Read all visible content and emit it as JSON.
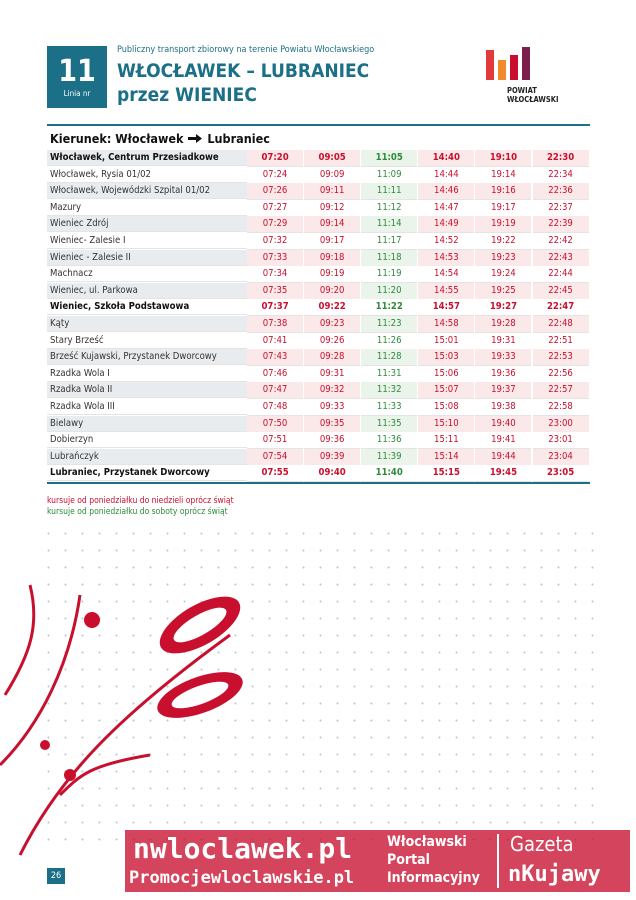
{
  "header": {
    "line_number": "11",
    "line_label": "Linia nr",
    "subtitle": "Publiczny transport zbiorowy na terenie Powiatu Włocławskiego",
    "title": "WŁOCŁAWEK – LUBRANIEC",
    "title_via": "przez WIENIEC",
    "logo_line1": "POWIAT",
    "logo_line2": "WŁOCŁAWSKI"
  },
  "direction": {
    "label": "Kierunek: Włocławek",
    "destination": "Lubraniec"
  },
  "table": {
    "column_colors": [
      "#c8102e",
      "#c8102e",
      "#2e8b3a",
      "#c8102e",
      "#c8102e",
      "#c8102e"
    ],
    "rows": [
      {
        "stop": "Włocławek, Centrum Przesiadkowe",
        "times": [
          "07:20",
          "09:05",
          "11:05",
          "14:40",
          "19:10",
          "22:30"
        ],
        "bold": true
      },
      {
        "stop": "Włocławek, Rysia 01/02",
        "times": [
          "07:24",
          "09:09",
          "11:09",
          "14:44",
          "19:14",
          "22:34"
        ],
        "bold": false
      },
      {
        "stop": "Włocławek, Wojewódzki Szpital 01/02",
        "times": [
          "07:26",
          "09:11",
          "11:11",
          "14:46",
          "19:16",
          "22:36"
        ],
        "bold": false
      },
      {
        "stop": "Mazury",
        "times": [
          "07:27",
          "09:12",
          "11:12",
          "14:47",
          "19:17",
          "22:37"
        ],
        "bold": false
      },
      {
        "stop": "Wieniec Zdrój",
        "times": [
          "07:29",
          "09:14",
          "11:14",
          "14:49",
          "19:19",
          "22:39"
        ],
        "bold": false
      },
      {
        "stop": "Wieniec- Zalesie I",
        "times": [
          "07:32",
          "09:17",
          "11:17",
          "14:52",
          "19:22",
          "22:42"
        ],
        "bold": false
      },
      {
        "stop": "Wieniec - Zalesie II",
        "times": [
          "07:33",
          "09:18",
          "11:18",
          "14:53",
          "19:23",
          "22:43"
        ],
        "bold": false
      },
      {
        "stop": "Machnacz",
        "times": [
          "07:34",
          "09:19",
          "11:19",
          "14:54",
          "19:24",
          "22:44"
        ],
        "bold": false
      },
      {
        "stop": "Wieniec, ul. Parkowa",
        "times": [
          "07:35",
          "09:20",
          "11:20",
          "14:55",
          "19:25",
          "22:45"
        ],
        "bold": false
      },
      {
        "stop": "Wieniec, Szkoła Podstawowa",
        "times": [
          "07:37",
          "09:22",
          "11:22",
          "14:57",
          "19:27",
          "22:47"
        ],
        "bold": true
      },
      {
        "stop": "Kąty",
        "times": [
          "07:38",
          "09:23",
          "11:23",
          "14:58",
          "19:28",
          "22:48"
        ],
        "bold": false
      },
      {
        "stop": "Stary Brześć",
        "times": [
          "07:41",
          "09:26",
          "11:26",
          "15:01",
          "19:31",
          "22:51"
        ],
        "bold": false
      },
      {
        "stop": "Brześć Kujawski, Przystanek Dworcowy",
        "times": [
          "07:43",
          "09:28",
          "11:28",
          "15:03",
          "19:33",
          "22:53"
        ],
        "bold": false
      },
      {
        "stop": "Rzadka Wola I",
        "times": [
          "07:46",
          "09:31",
          "11:31",
          "15:06",
          "19:36",
          "22:56"
        ],
        "bold": false
      },
      {
        "stop": "Rzadka Wola II",
        "times": [
          "07:47",
          "09:32",
          "11:32",
          "15:07",
          "19:37",
          "22:57"
        ],
        "bold": false
      },
      {
        "stop": "Rzadka Wola III",
        "times": [
          "07:48",
          "09:33",
          "11:33",
          "15:08",
          "19:38",
          "22:58"
        ],
        "bold": false
      },
      {
        "stop": "Bielawy",
        "times": [
          "07:50",
          "09:35",
          "11:35",
          "15:10",
          "19:40",
          "23:00"
        ],
        "bold": false
      },
      {
        "stop": "Dobierzyn",
        "times": [
          "07:51",
          "09:36",
          "11:36",
          "15:11",
          "19:41",
          "23:01"
        ],
        "bold": false
      },
      {
        "stop": "Lubrańczyk",
        "times": [
          "07:54",
          "09:39",
          "11:39",
          "15:14",
          "19:44",
          "23:04"
        ],
        "bold": false
      },
      {
        "stop": "Lubraniec, Przystanek Dworcowy",
        "times": [
          "07:55",
          "09:40",
          "11:40",
          "15:15",
          "19:45",
          "23:05"
        ],
        "bold": true
      }
    ]
  },
  "legend": [
    {
      "text": "kursuje od poniedziałku do niedzieli oprócz świąt",
      "color": "#c8102e"
    },
    {
      "text": "kursuje od poniedziałku do soboty oprócz świąt",
      "color": "#2e8b3a"
    }
  ],
  "footer": {
    "page_number": "26",
    "watermark_site1": "nwloclawek.pl",
    "watermark_site2": "Promocjewloclawskie.pl",
    "portal_line1": "Włocławski",
    "portal_line2": "Portal",
    "portal_line3": "Informacyjny",
    "gazeta_line1": "Gazeta",
    "gazeta_line2": "nKujawy"
  }
}
